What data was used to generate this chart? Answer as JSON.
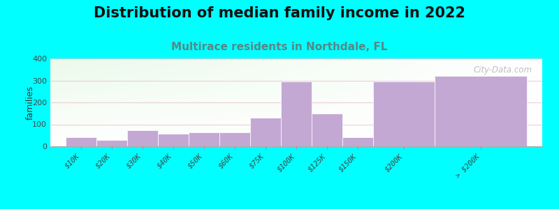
{
  "title": "Distribution of median family income in 2022",
  "subtitle": "Multirace residents in Northdale, FL",
  "ylabel": "families",
  "background_color": "#00FFFF",
  "bar_color": "#c4a8d4",
  "bar_edge_color": "#c4a8d4",
  "categories": [
    "$10K",
    "$20K",
    "$30K",
    "$40K",
    "$50K",
    "$60K",
    "$75K",
    "$100K",
    "$125K",
    "$150K",
    "$200K",
    "> $200K"
  ],
  "values": [
    40,
    28,
    72,
    58,
    62,
    65,
    130,
    295,
    150,
    42,
    295,
    320
  ],
  "bar_widths": [
    1,
    1,
    1,
    1,
    1,
    1,
    1,
    1,
    1,
    1,
    2,
    3
  ],
  "ylim": [
    0,
    400
  ],
  "yticks": [
    0,
    100,
    200,
    300,
    400
  ],
  "grid_color": "#e8b0c0",
  "title_fontsize": 15,
  "subtitle_fontsize": 11,
  "subtitle_color": "#558888",
  "watermark": "City-Data.com"
}
